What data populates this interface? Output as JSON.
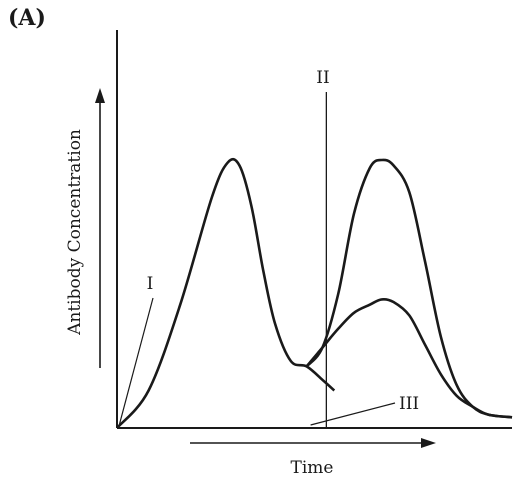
{
  "panel_label": "(A)",
  "chart_data": {
    "type": "line",
    "title": "",
    "xlabel": "Time",
    "ylabel": "Antibody Concentration",
    "grid": false,
    "legend": "none",
    "axis_ticks": "none",
    "xlim": [
      0,
      100
    ],
    "ylim": [
      0,
      100
    ],
    "series": [
      {
        "x": [
          0,
          8,
          16,
          24,
          28,
          31,
          34,
          37,
          40,
          44,
          48,
          52,
          55
        ],
        "y": [
          0,
          14,
          46,
          86,
          99,
          98,
          83,
          59,
          39,
          25,
          23,
          18,
          14
        ]
      },
      {
        "x": [
          48,
          52,
          56,
          60,
          64,
          67,
          70,
          74,
          78,
          82,
          86,
          90,
          94,
          100
        ],
        "y": [
          23,
          30,
          50,
          80,
          97,
          100,
          98,
          88,
          62,
          34,
          16,
          8,
          5,
          4
        ]
      },
      {
        "x": [
          48,
          52,
          56,
          60,
          64,
          67,
          70,
          74,
          78,
          82,
          86,
          90,
          94,
          100
        ],
        "y": [
          23,
          30,
          37,
          43,
          46,
          48,
          47,
          42,
          31,
          20,
          12,
          8,
          5,
          4
        ]
      }
    ],
    "annotations": [
      {
        "text": "I",
        "points_to": {
          "x": 0,
          "y": 0
        }
      },
      {
        "text": "II",
        "marker": "vertical line",
        "x": 53
      },
      {
        "text": "III",
        "points_to": {
          "x": 48,
          "y": 0
        }
      }
    ]
  }
}
